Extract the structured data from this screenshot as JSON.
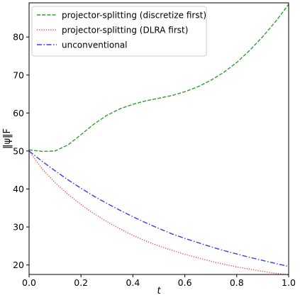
{
  "chart_data": {
    "type": "line",
    "title": "",
    "xlabel": "t",
    "ylabel": "‖ψ‖F",
    "xlim": [
      0.0,
      1.0
    ],
    "ylim": [
      17.5,
      89.0
    ],
    "xticks": [
      0.0,
      0.2,
      0.4,
      0.6,
      0.8,
      1.0
    ],
    "xtick_labels": [
      "0.0",
      "0.2",
      "0.4",
      "0.6",
      "0.8",
      "1.0"
    ],
    "yticks": [
      20,
      30,
      40,
      50,
      60,
      70,
      80
    ],
    "ytick_labels": [
      "20",
      "30",
      "40",
      "50",
      "60",
      "70",
      "80"
    ],
    "grid": false,
    "legend_position": "top-left",
    "series": [
      {
        "name": "projector-splitting (discretize first)",
        "color": "#2ca02c",
        "style": "dashed",
        "x": [
          0.0,
          0.05,
          0.1,
          0.15,
          0.2,
          0.25,
          0.3,
          0.35,
          0.4,
          0.45,
          0.5,
          0.55,
          0.6,
          0.65,
          0.7,
          0.75,
          0.8,
          0.85,
          0.9,
          0.95,
          1.0
        ],
        "y": [
          50.3,
          49.9,
          50.0,
          51.6,
          54.3,
          57.1,
          59.4,
          61.1,
          62.3,
          63.2,
          63.9,
          64.6,
          65.6,
          66.9,
          68.6,
          70.7,
          73.3,
          76.5,
          80.1,
          84.1,
          88.6
        ]
      },
      {
        "name": "projector-splitting (DLRA first)",
        "color": "#e84a3f",
        "style": "dotted",
        "x": [
          0.0,
          0.05,
          0.1,
          0.15,
          0.2,
          0.25,
          0.3,
          0.35,
          0.4,
          0.45,
          0.5,
          0.55,
          0.6,
          0.65,
          0.7,
          0.75,
          0.8,
          0.85,
          0.9,
          0.95,
          1.0
        ],
        "y": [
          50.0,
          45.3,
          41.7,
          38.6,
          35.9,
          33.5,
          31.4,
          29.5,
          27.8,
          26.3,
          25.0,
          23.9,
          22.8,
          21.9,
          21.0,
          20.2,
          19.5,
          18.9,
          18.3,
          17.8,
          17.4
        ]
      },
      {
        "name": "unconventional",
        "color": "#3b3bf0",
        "style": "dashdot",
        "x": [
          0.0,
          0.05,
          0.1,
          0.15,
          0.2,
          0.25,
          0.3,
          0.35,
          0.4,
          0.45,
          0.5,
          0.55,
          0.6,
          0.65,
          0.7,
          0.75,
          0.8,
          0.85,
          0.9,
          0.95,
          1.0
        ],
        "y": [
          50.0,
          47.3,
          44.8,
          42.4,
          40.2,
          38.1,
          36.2,
          34.4,
          32.7,
          31.1,
          29.6,
          28.2,
          27.0,
          25.9,
          24.8,
          23.8,
          22.9,
          22.0,
          21.2,
          20.4,
          19.6
        ]
      }
    ]
  }
}
